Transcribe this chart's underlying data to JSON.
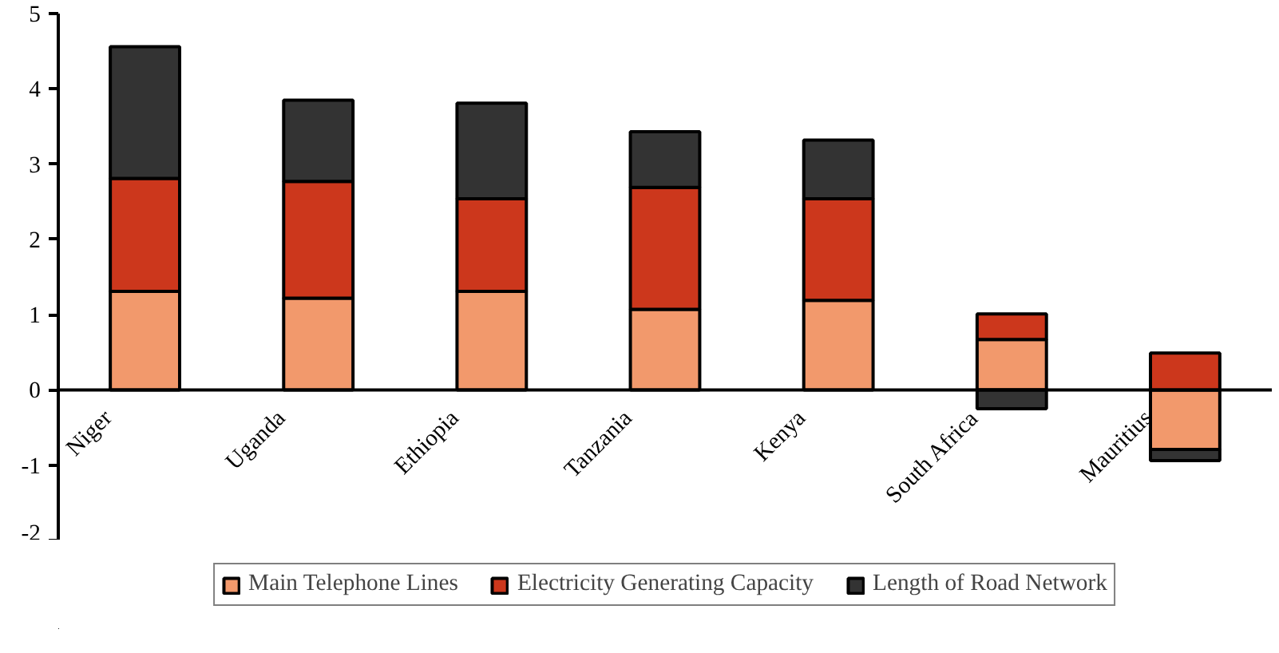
{
  "chart_data": {
    "type": "bar",
    "stacked": true,
    "categories": [
      "Niger",
      "Uganda",
      "Ethiopia",
      "Tanzania",
      "Kenya",
      "South Africa",
      "Mauritius"
    ],
    "series": [
      {
        "name": "Main Telephone Lines",
        "color": "#f2996c",
        "values": [
          1.31,
          1.22,
          1.31,
          1.07,
          1.19,
          0.67,
          -0.79
        ]
      },
      {
        "name": "Electricity Generating Capacity",
        "color": "#cc371c",
        "values": [
          1.5,
          1.55,
          1.23,
          1.62,
          1.35,
          0.34,
          0.49
        ]
      },
      {
        "name": "Length of Road Network",
        "color": "#333333",
        "values": [
          1.75,
          1.08,
          1.27,
          0.74,
          0.78,
          -0.25,
          -0.15
        ]
      }
    ],
    "ylim": [
      -2,
      5
    ],
    "yticks": [
      -2,
      -1,
      0,
      1,
      2,
      3,
      4,
      5
    ],
    "grid": false,
    "legend": "bottom"
  }
}
